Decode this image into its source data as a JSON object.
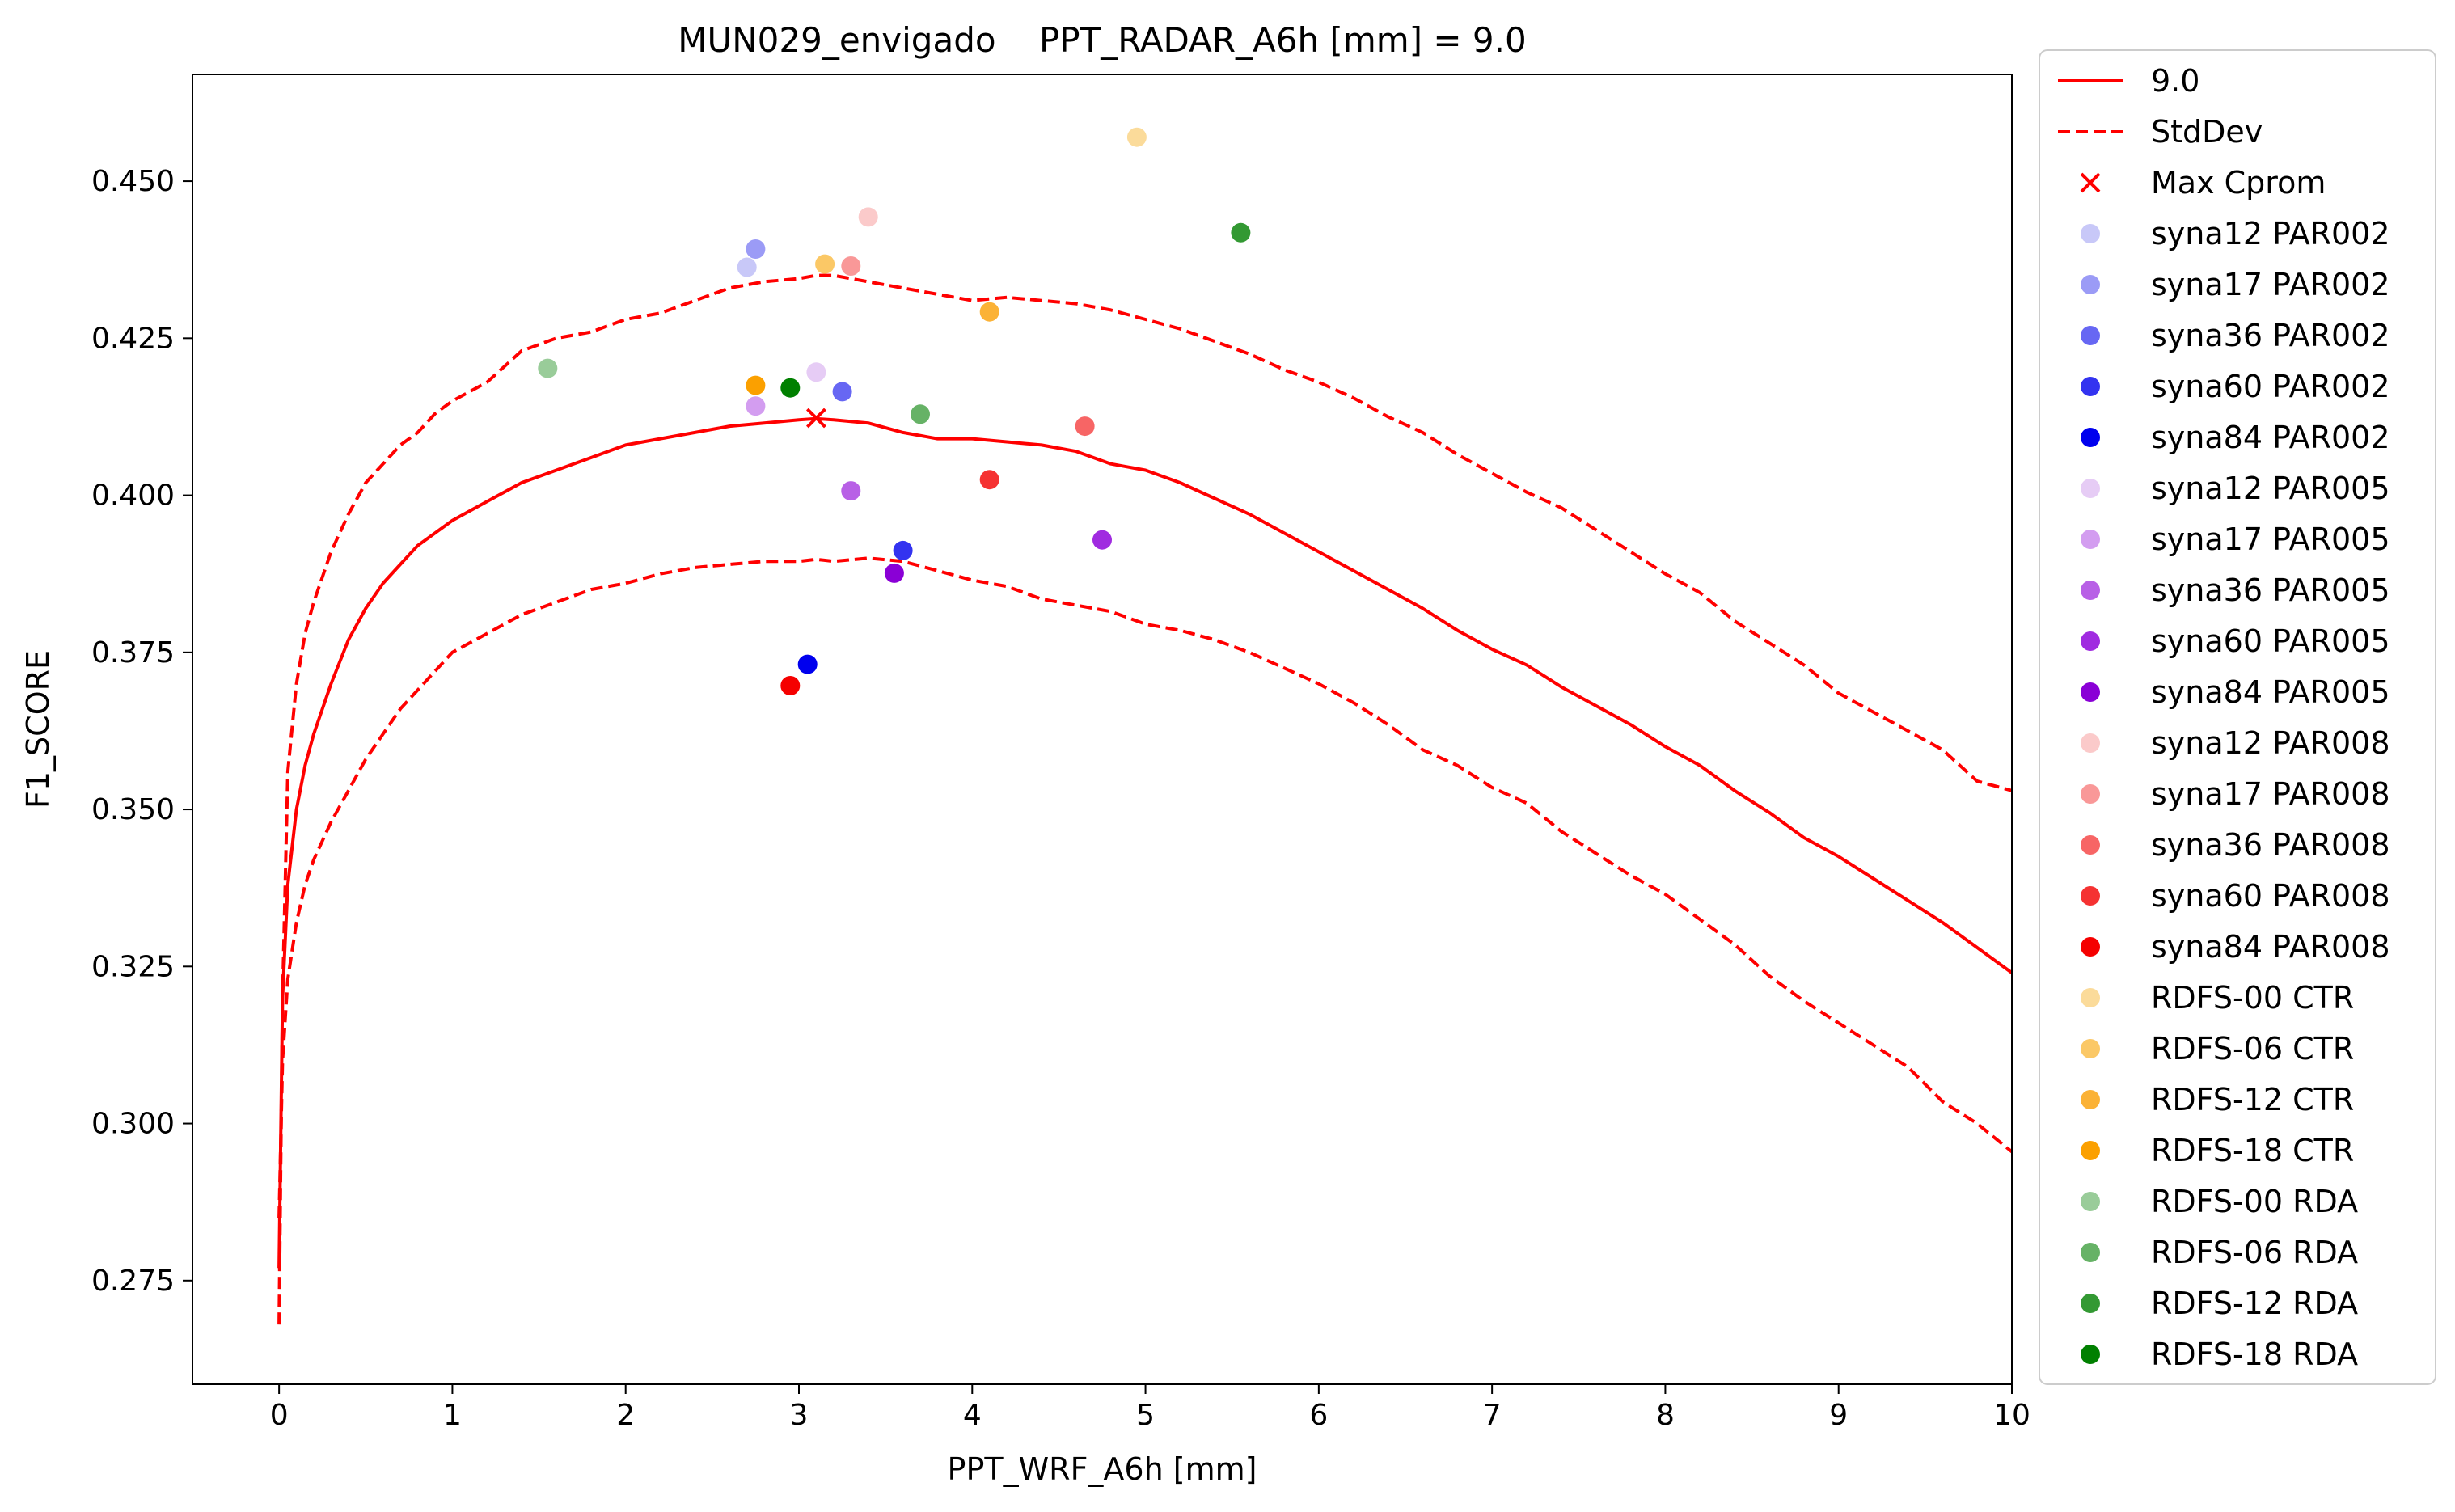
{
  "chart_data": {
    "type": "scatter",
    "title": "MUN029_envigado    PPT_RADAR_A6h [mm] = 9.0",
    "xlabel": "PPT_WRF_A6h [mm]",
    "ylabel": "F1_SCORE",
    "xlim": [
      -0.5,
      10
    ],
    "ylim": [
      0.2585,
      0.467
    ],
    "xticks": [
      0,
      1,
      2,
      3,
      4,
      5,
      6,
      7,
      8,
      9,
      10
    ],
    "xtick_labels": [
      "0",
      "1",
      "2",
      "3",
      "4",
      "5",
      "6",
      "7",
      "8",
      "9",
      "10"
    ],
    "yticks": [
      0.275,
      0.3,
      0.325,
      0.35,
      0.375,
      0.4,
      0.425,
      0.45
    ],
    "ytick_labels": [
      "0.275",
      "0.300",
      "0.325",
      "0.350",
      "0.375",
      "0.400",
      "0.425",
      "0.450"
    ],
    "grid": false,
    "legend_position": "outside-right",
    "curve_color": "#ff0000",
    "lines": [
      {
        "name": "9.0",
        "style": "solid",
        "x": [
          0,
          0.02,
          0.05,
          0.1,
          0.15,
          0.2,
          0.3,
          0.4,
          0.5,
          0.6,
          0.7,
          0.8,
          0.9,
          1.0,
          1.2,
          1.4,
          1.6,
          1.8,
          2.0,
          2.2,
          2.4,
          2.6,
          2.8,
          3.0,
          3.1,
          3.2,
          3.4,
          3.6,
          3.8,
          4.0,
          4.2,
          4.4,
          4.6,
          4.8,
          5.0,
          5.2,
          5.4,
          5.6,
          5.8,
          6.0,
          6.2,
          6.4,
          6.6,
          6.8,
          7.0,
          7.2,
          7.4,
          7.6,
          7.8,
          8.0,
          8.2,
          8.4,
          8.6,
          8.8,
          9.0,
          9.2,
          9.4,
          9.6,
          9.8,
          10.0
        ],
        "y": [
          0.277,
          0.32,
          0.338,
          0.35,
          0.357,
          0.362,
          0.37,
          0.377,
          0.382,
          0.386,
          0.389,
          0.392,
          0.394,
          0.396,
          0.399,
          0.402,
          0.404,
          0.406,
          0.408,
          0.409,
          0.41,
          0.411,
          0.4115,
          0.412,
          0.4122,
          0.412,
          0.4115,
          0.41,
          0.409,
          0.409,
          0.4085,
          0.408,
          0.407,
          0.405,
          0.404,
          0.402,
          0.3995,
          0.397,
          0.394,
          0.391,
          0.388,
          0.385,
          0.382,
          0.3785,
          0.3755,
          0.373,
          0.3695,
          0.3665,
          0.3635,
          0.36,
          0.357,
          0.353,
          0.3495,
          0.3455,
          0.3425,
          0.339,
          0.3355,
          0.332,
          0.328,
          0.324
        ]
      },
      {
        "name": "StdDev",
        "style": "dashed",
        "x": [
          0,
          0.02,
          0.05,
          0.1,
          0.15,
          0.2,
          0.3,
          0.4,
          0.5,
          0.6,
          0.7,
          0.8,
          0.9,
          1.0,
          1.2,
          1.4,
          1.6,
          1.8,
          2.0,
          2.2,
          2.4,
          2.6,
          2.8,
          3.0,
          3.1,
          3.2,
          3.4,
          3.6,
          3.8,
          4.0,
          4.2,
          4.4,
          4.6,
          4.8,
          5.0,
          5.2,
          5.4,
          5.6,
          5.8,
          6.0,
          6.2,
          6.4,
          6.6,
          6.8,
          7.0,
          7.2,
          7.4,
          7.6,
          7.8,
          8.0,
          8.2,
          8.4,
          8.6,
          8.8,
          9.0,
          9.2,
          9.4,
          9.6,
          9.8,
          10.0
        ],
        "y": [
          0.268,
          0.32,
          0.356,
          0.37,
          0.378,
          0.383,
          0.391,
          0.397,
          0.402,
          0.405,
          0.408,
          0.41,
          0.413,
          0.415,
          0.418,
          0.423,
          0.425,
          0.426,
          0.428,
          0.429,
          0.431,
          0.433,
          0.434,
          0.4345,
          0.435,
          0.435,
          0.434,
          0.433,
          0.432,
          0.431,
          0.4315,
          0.431,
          0.4305,
          0.4295,
          0.428,
          0.4265,
          0.4245,
          0.4225,
          0.42,
          0.418,
          0.4155,
          0.4125,
          0.41,
          0.4065,
          0.4035,
          0.4005,
          0.398,
          0.3945,
          0.391,
          0.3875,
          0.3845,
          0.38,
          0.3765,
          0.373,
          0.3685,
          0.3655,
          0.3625,
          0.3595,
          0.3545,
          0.353
        ]
      },
      {
        "name": "",
        "style": "dashed",
        "x": [
          0,
          0.02,
          0.05,
          0.1,
          0.15,
          0.2,
          0.3,
          0.4,
          0.5,
          0.6,
          0.7,
          0.8,
          0.9,
          1.0,
          1.2,
          1.4,
          1.6,
          1.8,
          2.0,
          2.2,
          2.4,
          2.6,
          2.8,
          3.0,
          3.1,
          3.2,
          3.4,
          3.6,
          3.8,
          4.0,
          4.2,
          4.4,
          4.6,
          4.8,
          5.0,
          5.2,
          5.4,
          5.6,
          5.8,
          6.0,
          6.2,
          6.4,
          6.6,
          6.8,
          7.0,
          7.2,
          7.4,
          7.6,
          7.8,
          8.0,
          8.2,
          8.4,
          8.6,
          8.8,
          9.0,
          9.2,
          9.4,
          9.6,
          9.8,
          10.0
        ],
        "y": [
          0.285,
          0.31,
          0.323,
          0.332,
          0.338,
          0.342,
          0.348,
          0.353,
          0.358,
          0.362,
          0.366,
          0.369,
          0.372,
          0.375,
          0.378,
          0.381,
          0.383,
          0.385,
          0.386,
          0.3875,
          0.3885,
          0.389,
          0.3895,
          0.3895,
          0.3898,
          0.3895,
          0.39,
          0.3895,
          0.388,
          0.3865,
          0.3855,
          0.3835,
          0.3825,
          0.3815,
          0.3795,
          0.3785,
          0.377,
          0.375,
          0.3725,
          0.37,
          0.367,
          0.3635,
          0.3595,
          0.357,
          0.3535,
          0.351,
          0.3465,
          0.343,
          0.3395,
          0.3365,
          0.3325,
          0.3285,
          0.3235,
          0.3195,
          0.316,
          0.3125,
          0.309,
          0.3035,
          0.3,
          0.2955
        ]
      }
    ],
    "max_cprom": {
      "name": "Max Cprom",
      "x": 3.1,
      "y": 0.4123,
      "color": "#ff0000"
    },
    "series": [
      {
        "name": "syna12 PAR002",
        "color": "#c8c8f8",
        "x": 2.7,
        "y": 0.4363
      },
      {
        "name": "syna17 PAR002",
        "color": "#9b9bf6",
        "x": 2.75,
        "y": 0.4392
      },
      {
        "name": "syna36 PAR002",
        "color": "#6767f3",
        "x": 3.25,
        "y": 0.4165
      },
      {
        "name": "syna60 PAR002",
        "color": "#3333f0",
        "x": 3.6,
        "y": 0.3912
      },
      {
        "name": "syna84 PAR002",
        "color": "#0000ee",
        "x": 3.05,
        "y": 0.3731
      },
      {
        "name": "syna12 PAR005",
        "color": "#e6ccf5",
        "x": 3.1,
        "y": 0.4196
      },
      {
        "name": "syna17 PAR005",
        "color": "#d39df0",
        "x": 2.75,
        "y": 0.4142
      },
      {
        "name": "syna36 PAR005",
        "color": "#b860e6",
        "x": 3.3,
        "y": 0.4007
      },
      {
        "name": "syna60 PAR005",
        "color": "#a02be0",
        "x": 4.75,
        "y": 0.3929
      },
      {
        "name": "syna84 PAR005",
        "color": "#8a00d6",
        "x": 3.55,
        "y": 0.3876
      },
      {
        "name": "syna12 PAR008",
        "color": "#fbcaca",
        "x": 3.4,
        "y": 0.4443
      },
      {
        "name": "syna17 PAR008",
        "color": "#f99898",
        "x": 3.3,
        "y": 0.4365
      },
      {
        "name": "syna36 PAR008",
        "color": "#f76565",
        "x": 4.65,
        "y": 0.411
      },
      {
        "name": "syna60 PAR008",
        "color": "#f53232",
        "x": 4.1,
        "y": 0.4025
      },
      {
        "name": "syna84 PAR008",
        "color": "#f50000",
        "x": 2.95,
        "y": 0.3697
      },
      {
        "name": "RDFS-00 CTR",
        "color": "#fbdb9a",
        "x": 4.95,
        "y": 0.457
      },
      {
        "name": "RDFS-06 CTR",
        "color": "#fbc866",
        "x": 3.15,
        "y": 0.4368
      },
      {
        "name": "RDFS-12 CTR",
        "color": "#fbb236",
        "x": 4.1,
        "y": 0.4292
      },
      {
        "name": "RDFS-18 CTR",
        "color": "#fba000",
        "x": 2.75,
        "y": 0.4175
      },
      {
        "name": "RDFS-00 RDA",
        "color": "#99cc99",
        "x": 1.55,
        "y": 0.4202
      },
      {
        "name": "RDFS-06 RDA",
        "color": "#66b266",
        "x": 3.7,
        "y": 0.4129
      },
      {
        "name": "RDFS-12 RDA",
        "color": "#339933",
        "x": 5.55,
        "y": 0.4418
      },
      {
        "name": "RDFS-18 RDA",
        "color": "#008000",
        "x": 2.95,
        "y": 0.4171
      }
    ]
  }
}
